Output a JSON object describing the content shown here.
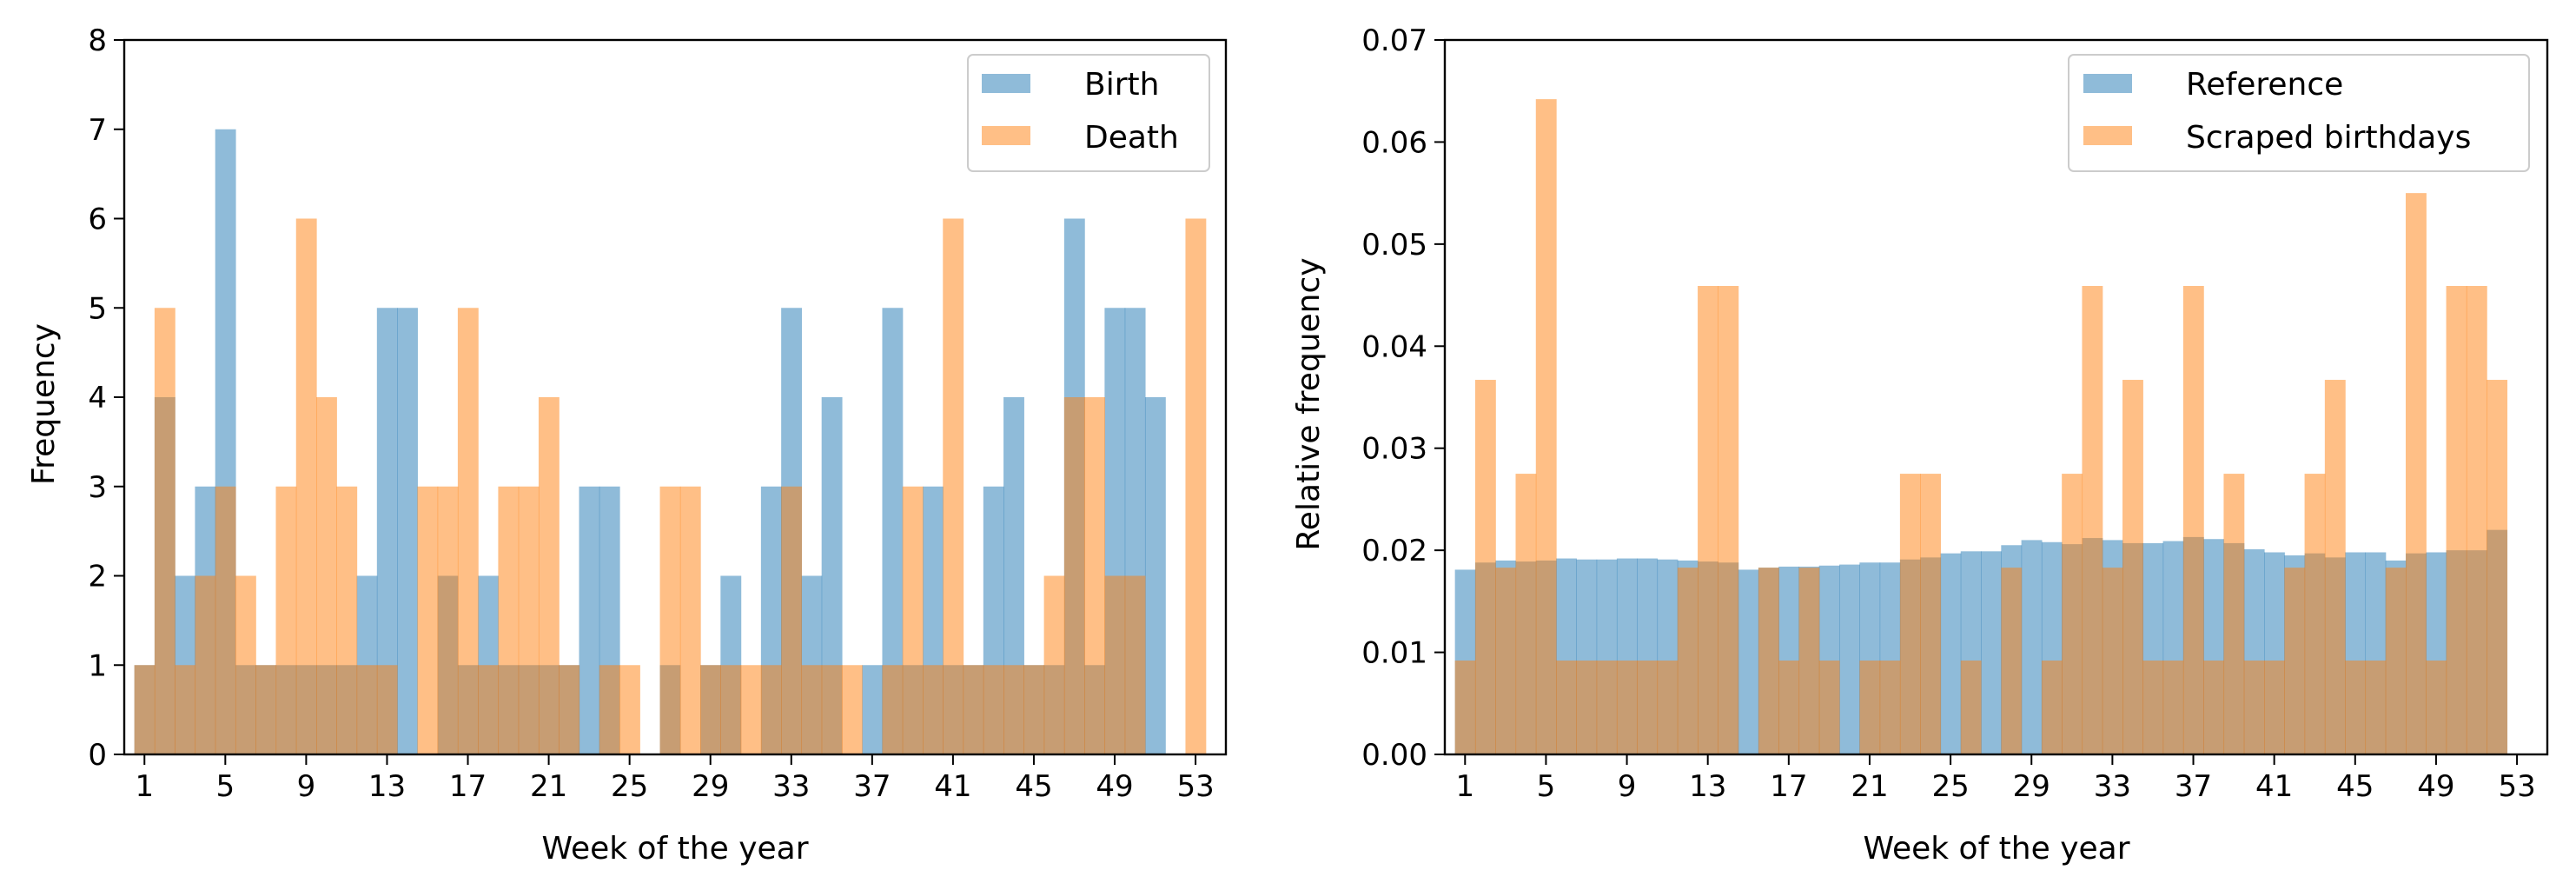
{
  "colors": {
    "series_blue": "#1f77b4",
    "series_orange": "#ff7f0e",
    "bar_alpha": 0.5
  },
  "chart_data": [
    {
      "type": "bar",
      "subtype": "overlapping histogram",
      "xlabel": "Week of the year",
      "ylabel": "Frequency",
      "xlim": [
        0,
        54.5
      ],
      "ylim": [
        0,
        8
      ],
      "xticks": [
        "1",
        "5",
        "9",
        "13",
        "17",
        "21",
        "25",
        "29",
        "33",
        "37",
        "41",
        "45",
        "49",
        "53"
      ],
      "yticks": [
        "0",
        "1",
        "2",
        "3",
        "4",
        "5",
        "6",
        "7",
        "8"
      ],
      "grid": false,
      "legend": "top-right",
      "series": [
        {
          "name": "Birth",
          "color": "#1f77b4",
          "weeks": [
            1,
            2,
            3,
            4,
            5,
            6,
            7,
            8,
            9,
            10,
            11,
            12,
            13,
            14,
            15,
            16,
            17,
            18,
            19,
            20,
            21,
            22,
            23,
            24,
            25,
            26,
            27,
            28,
            29,
            30,
            31,
            32,
            33,
            34,
            35,
            36,
            37,
            38,
            39,
            40,
            41,
            42,
            43,
            44,
            45,
            46,
            47,
            48,
            49,
            50,
            51,
            52,
            53
          ],
          "values": [
            1,
            4,
            2,
            3,
            7,
            1,
            1,
            1,
            1,
            1,
            1,
            2,
            5,
            5,
            0,
            2,
            1,
            2,
            1,
            1,
            1,
            1,
            3,
            3,
            0,
            0,
            1,
            0,
            1,
            2,
            0,
            3,
            5,
            2,
            4,
            0,
            1,
            5,
            1,
            3,
            1,
            1,
            3,
            4,
            1,
            1,
            6,
            1,
            5,
            5,
            4,
            0,
            0
          ]
        },
        {
          "name": "Death",
          "color": "#ff7f0e",
          "weeks": [
            1,
            2,
            3,
            4,
            5,
            6,
            7,
            8,
            9,
            10,
            11,
            12,
            13,
            14,
            15,
            16,
            17,
            18,
            19,
            20,
            21,
            22,
            23,
            24,
            25,
            26,
            27,
            28,
            29,
            30,
            31,
            32,
            33,
            34,
            35,
            36,
            37,
            38,
            39,
            40,
            41,
            42,
            43,
            44,
            45,
            46,
            47,
            48,
            49,
            50,
            51,
            52,
            53
          ],
          "values": [
            1,
            5,
            1,
            2,
            3,
            2,
            1,
            3,
            6,
            4,
            3,
            1,
            1,
            0,
            3,
            3,
            5,
            1,
            3,
            3,
            4,
            1,
            0,
            1,
            1,
            0,
            3,
            3,
            1,
            1,
            1,
            1,
            3,
            1,
            1,
            1,
            0,
            1,
            3,
            1,
            6,
            1,
            1,
            1,
            1,
            2,
            4,
            4,
            2,
            2,
            0,
            0,
            6
          ]
        }
      ]
    },
    {
      "type": "bar",
      "subtype": "overlapping histogram",
      "xlabel": "Week of the year",
      "ylabel": "Relative frequency",
      "xlim": [
        0,
        54.5
      ],
      "ylim": [
        0,
        0.07
      ],
      "xticks": [
        "1",
        "5",
        "9",
        "13",
        "17",
        "21",
        "25",
        "29",
        "33",
        "37",
        "41",
        "45",
        "49",
        "53"
      ],
      "yticks": [
        "0.00",
        "0.01",
        "0.02",
        "0.03",
        "0.04",
        "0.05",
        "0.06",
        "0.07"
      ],
      "grid": false,
      "legend": "top-right",
      "series": [
        {
          "name": "Reference",
          "color": "#1f77b4",
          "weeks": [
            1,
            2,
            3,
            4,
            5,
            6,
            7,
            8,
            9,
            10,
            11,
            12,
            13,
            14,
            15,
            16,
            17,
            18,
            19,
            20,
            21,
            22,
            23,
            24,
            25,
            26,
            27,
            28,
            29,
            30,
            31,
            32,
            33,
            34,
            35,
            36,
            37,
            38,
            39,
            40,
            41,
            42,
            43,
            44,
            45,
            46,
            47,
            48,
            49,
            50,
            51,
            52
          ],
          "values": [
            0.0181,
            0.0188,
            0.019,
            0.0189,
            0.019,
            0.0192,
            0.0191,
            0.0191,
            0.0192,
            0.0192,
            0.0191,
            0.019,
            0.0189,
            0.0188,
            0.0181,
            0.0183,
            0.0184,
            0.0184,
            0.0185,
            0.0186,
            0.0188,
            0.0188,
            0.0191,
            0.0193,
            0.0197,
            0.0199,
            0.0199,
            0.0205,
            0.021,
            0.0208,
            0.0206,
            0.0212,
            0.021,
            0.0207,
            0.0207,
            0.0209,
            0.0213,
            0.0211,
            0.0207,
            0.0201,
            0.0198,
            0.0195,
            0.0197,
            0.0193,
            0.0198,
            0.0198,
            0.019,
            0.0197,
            0.0198,
            0.02,
            0.02,
            0.022
          ]
        },
        {
          "name": "Scraped birthdays",
          "color": "#ff7f0e",
          "weeks": [
            1,
            2,
            3,
            4,
            5,
            6,
            7,
            8,
            9,
            10,
            11,
            12,
            13,
            14,
            15,
            16,
            17,
            18,
            19,
            20,
            21,
            22,
            23,
            24,
            25,
            26,
            27,
            28,
            29,
            30,
            31,
            32,
            33,
            34,
            35,
            36,
            37,
            38,
            39,
            40,
            41,
            42,
            43,
            44,
            45,
            46,
            47,
            48,
            49,
            50,
            51,
            52
          ],
          "values": [
            0.0092,
            0.0367,
            0.0183,
            0.0275,
            0.0642,
            0.0092,
            0.0092,
            0.0092,
            0.0092,
            0.0092,
            0.0092,
            0.0183,
            0.0459,
            0.0459,
            0.0,
            0.0183,
            0.0092,
            0.0183,
            0.0092,
            0.0,
            0.0092,
            0.0092,
            0.0275,
            0.0275,
            0.0,
            0.0092,
            0.0,
            0.0183,
            0.0,
            0.0092,
            0.0275,
            0.0459,
            0.0183,
            0.0367,
            0.0092,
            0.0092,
            0.0459,
            0.0092,
            0.0275,
            0.0092,
            0.0092,
            0.0183,
            0.0275,
            0.0367,
            0.0092,
            0.0092,
            0.0183,
            0.055,
            0.0092,
            0.0459,
            0.0459,
            0.0367
          ]
        }
      ]
    }
  ]
}
